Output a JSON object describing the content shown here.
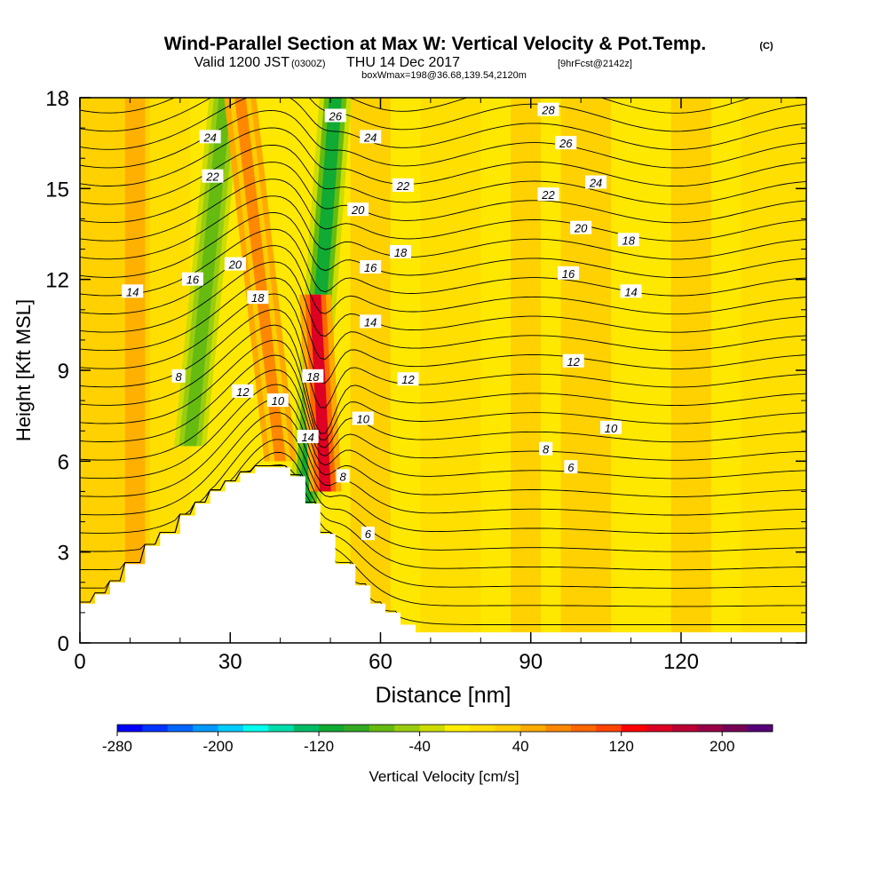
{
  "chart_data": {
    "type": "heatmap",
    "title": "Wind-Parallel Section at Max W: Vertical Velocity & Pot.Temp.",
    "title_mark": "(C)",
    "subtitle_valid": "Valid 1200 JST",
    "subtitle_utc": "(0300Z)",
    "subtitle_date": "THU 14 Dec 2017",
    "subtitle_fcst": "[9hrFcst@2142z]",
    "subtitle_box": "boxWmax=198@36.68,139.54,2120m",
    "xlabel": "Distance [nm]",
    "ylabel": "Height [Kft MSL]",
    "xlim": [
      0,
      145
    ],
    "ylim": [
      0,
      18
    ],
    "x_ticks": [
      "0",
      "30",
      "60",
      "90",
      "120"
    ],
    "y_ticks": [
      "0",
      "3",
      "6",
      "9",
      "12",
      "15",
      "18"
    ],
    "colorbar": {
      "label": "Vertical Velocity [cm/s]",
      "tick_labels": [
        "-280",
        "-200",
        "-120",
        "-40",
        "40",
        "120",
        "200"
      ],
      "colors": [
        "#0000ff",
        "#0033ff",
        "#0066ff",
        "#0099ff",
        "#00ccff",
        "#00ffee",
        "#00ddaa",
        "#00bb66",
        "#11aa33",
        "#33aa22",
        "#66bb11",
        "#99cc11",
        "#ccdd00",
        "#ffee00",
        "#ffdd00",
        "#ffcc00",
        "#ffaa00",
        "#ff8800",
        "#ff6600",
        "#ff4400",
        "#ff0000",
        "#dd0022",
        "#bb0033",
        "#990044",
        "#770055",
        "#550077"
      ]
    },
    "terrain_profile": [
      [
        0,
        1.3
      ],
      [
        3,
        1.3
      ],
      [
        3,
        1.6
      ],
      [
        6,
        1.6
      ],
      [
        6,
        2.0
      ],
      [
        9,
        2.0
      ],
      [
        9,
        2.6
      ],
      [
        13,
        2.6
      ],
      [
        13,
        3.2
      ],
      [
        16,
        3.2
      ],
      [
        16,
        3.6
      ],
      [
        20,
        3.6
      ],
      [
        20,
        4.2
      ],
      [
        23,
        4.2
      ],
      [
        23,
        4.6
      ],
      [
        26,
        4.6
      ],
      [
        26,
        5.0
      ],
      [
        29,
        5.0
      ],
      [
        29,
        5.3
      ],
      [
        32,
        5.3
      ],
      [
        32,
        5.6
      ],
      [
        35,
        5.6
      ],
      [
        35,
        5.8
      ],
      [
        42,
        5.8
      ],
      [
        42,
        5.5
      ],
      [
        45,
        5.5
      ],
      [
        45,
        4.6
      ],
      [
        48,
        4.6
      ],
      [
        48,
        3.6
      ],
      [
        51,
        3.6
      ],
      [
        51,
        2.6
      ],
      [
        55,
        2.6
      ],
      [
        55,
        1.9
      ],
      [
        58,
        1.9
      ],
      [
        58,
        1.3
      ],
      [
        61,
        1.3
      ],
      [
        61,
        1.0
      ],
      [
        64,
        1.0
      ],
      [
        64,
        0.6
      ],
      [
        67,
        0.6
      ],
      [
        67,
        0.35
      ],
      [
        145,
        0.35
      ]
    ],
    "vertical_velocity_features": [
      {
        "x_bottom": 22,
        "x_top": 29,
        "y_bottom": 6.5,
        "y_top": 18,
        "value": -80,
        "label": "downdraft-upwind"
      },
      {
        "x_bottom": 45,
        "x_top": 51,
        "y_bottom": 4.6,
        "y_top": 18,
        "value": -110,
        "label": "downdraft-lee"
      },
      {
        "x_bottom": 49,
        "x_top": 47,
        "y_bottom": 5.0,
        "y_top": 11.5,
        "value": 150,
        "label": "updraft-core"
      },
      {
        "x_bottom": 40,
        "x_top": 32,
        "y_bottom": 6.0,
        "y_top": 18,
        "value": 60,
        "label": "updraft-ridge"
      }
    ],
    "contour_labels": [
      {
        "text": "24",
        "x": 26,
        "y": 16.7
      },
      {
        "text": "22",
        "x": 26.5,
        "y": 15.4
      },
      {
        "text": "20",
        "x": 31,
        "y": 12.5
      },
      {
        "text": "16",
        "x": 22.5,
        "y": 12.0
      },
      {
        "text": "14",
        "x": 10.5,
        "y": 11.6
      },
      {
        "text": "18",
        "x": 35.5,
        "y": 11.4
      },
      {
        "text": "8",
        "x": 19.7,
        "y": 8.8
      },
      {
        "text": "12",
        "x": 32.5,
        "y": 8.3
      },
      {
        "text": "10",
        "x": 39.5,
        "y": 8.0
      },
      {
        "text": "18",
        "x": 46.5,
        "y": 8.8
      },
      {
        "text": "14",
        "x": 45.5,
        "y": 6.8
      },
      {
        "text": "8",
        "x": 52.5,
        "y": 5.5
      },
      {
        "text": "6",
        "x": 57.5,
        "y": 3.6
      },
      {
        "text": "26",
        "x": 51,
        "y": 17.4
      },
      {
        "text": "24",
        "x": 58,
        "y": 16.7
      },
      {
        "text": "22",
        "x": 64.5,
        "y": 15.1
      },
      {
        "text": "20",
        "x": 55.5,
        "y": 14.3
      },
      {
        "text": "18",
        "x": 64,
        "y": 12.9
      },
      {
        "text": "16",
        "x": 58,
        "y": 12.4
      },
      {
        "text": "14",
        "x": 58,
        "y": 10.6
      },
      {
        "text": "12",
        "x": 65.5,
        "y": 8.7
      },
      {
        "text": "10",
        "x": 56.5,
        "y": 7.4
      },
      {
        "text": "28",
        "x": 93.5,
        "y": 17.6
      },
      {
        "text": "26",
        "x": 97,
        "y": 16.5
      },
      {
        "text": "24",
        "x": 103,
        "y": 15.2
      },
      {
        "text": "22",
        "x": 93.5,
        "y": 14.8
      },
      {
        "text": "20",
        "x": 100,
        "y": 13.7
      },
      {
        "text": "18",
        "x": 109.5,
        "y": 13.3
      },
      {
        "text": "16",
        "x": 97.5,
        "y": 12.2
      },
      {
        "text": "14",
        "x": 110,
        "y": 11.6
      },
      {
        "text": "12",
        "x": 98.5,
        "y": 9.3
      },
      {
        "text": "10",
        "x": 106,
        "y": 7.1
      },
      {
        "text": "8",
        "x": 93,
        "y": 6.4
      },
      {
        "text": "6",
        "x": 98,
        "y": 5.8
      }
    ]
  }
}
